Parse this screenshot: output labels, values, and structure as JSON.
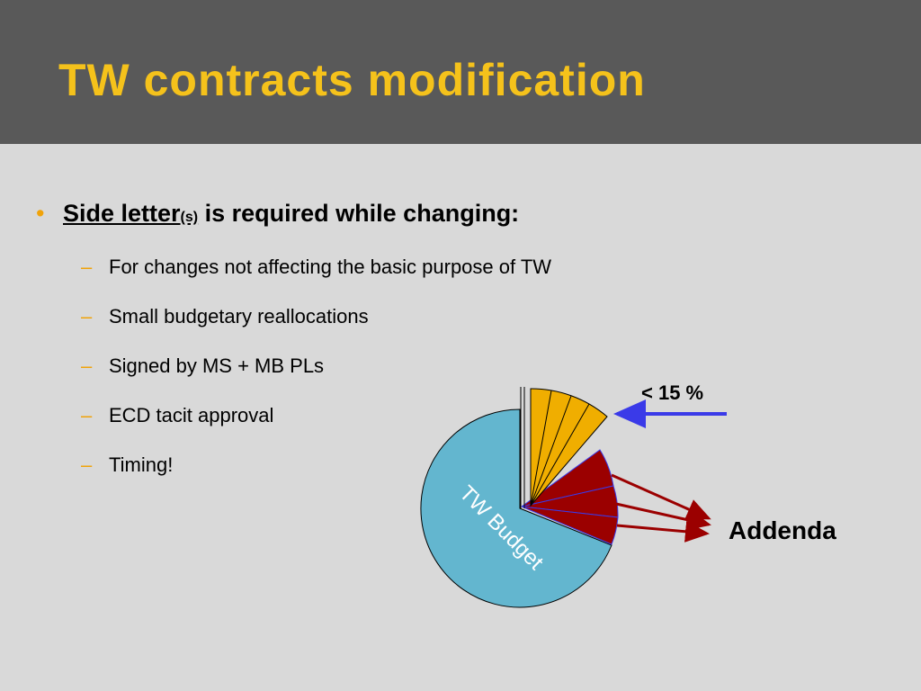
{
  "header": {
    "title": "TW contracts modification"
  },
  "bullet": {
    "lead": "Side letter",
    "lead_suffix": "(s)",
    "rest": "is required while changing:"
  },
  "sub_items": [
    "For changes not affecting the basic purpose of TW",
    "Small budgetary reallocations",
    "Signed by MS + MB PLs",
    "ECD tacit approval",
    "Timing!"
  ],
  "diagram": {
    "small_label": "< 15 %",
    "addenda_label": "Addenda",
    "budget_label": "TW Budget"
  }
}
